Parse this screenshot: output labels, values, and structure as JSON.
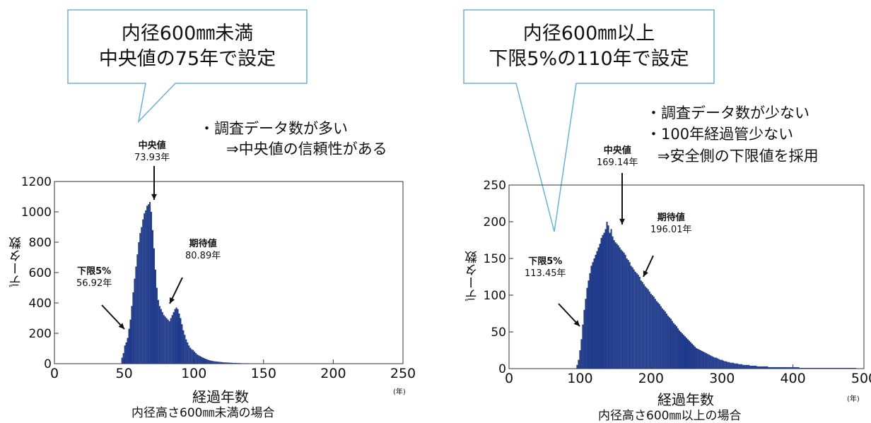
{
  "callouts": [
    {
      "line1": "内径600㎜未満",
      "line2": "中央値の75年で設定"
    },
    {
      "line1": "内径600㎜以上",
      "line2": "下限5%の110年で設定"
    }
  ],
  "notes_left": [
    "・調査データ数が多い",
    "⇒中央値の信頼性がある"
  ],
  "notes_right": [
    "・調査データ数が少ない",
    "・100年経過管少ない",
    "⇒安全側の下限値を採用"
  ],
  "chart_data": [
    {
      "type": "bar",
      "title": "",
      "xlabel": "経過年数",
      "ylabel": "データ数",
      "x_unit": "(年)",
      "caption": "内径高さ600㎜未満の場合",
      "xlim": [
        0,
        250
      ],
      "ylim": [
        0,
        1200
      ],
      "xticks": [
        "0",
        "50",
        "100",
        "150",
        "200",
        "250"
      ],
      "yticks": [
        "0",
        "200",
        "400",
        "600",
        "800",
        "1000",
        "1200"
      ],
      "color": "#1f3a8a",
      "bins_start": 48,
      "bin_width": 1,
      "values": [
        40,
        70,
        120,
        140,
        170,
        230,
        290,
        380,
        470,
        560,
        640,
        720,
        800,
        860,
        900,
        950,
        990,
        1010,
        1040,
        1050,
        1065,
        1000,
        880,
        760,
        620,
        500,
        420,
        380,
        360,
        340,
        320,
        310,
        300,
        290,
        280,
        300,
        320,
        340,
        360,
        370,
        360,
        330,
        300,
        260,
        220,
        190,
        160,
        140,
        120,
        105,
        95,
        90,
        80,
        70,
        60,
        55,
        50,
        45,
        40,
        36,
        32,
        28,
        25,
        22,
        20,
        18,
        16,
        15,
        14,
        13,
        12,
        11,
        10,
        9,
        8,
        8,
        7,
        7,
        6,
        6,
        5,
        5,
        5,
        4,
        4,
        4,
        3,
        3,
        3,
        3,
        3,
        2,
        2,
        2,
        2,
        2,
        2,
        2,
        2,
        2,
        2,
        2,
        2,
        2,
        2,
        2,
        1,
        1,
        1,
        1,
        1,
        1,
        1,
        1,
        1,
        1,
        1,
        1,
        1,
        1,
        1,
        1,
        1,
        1,
        1,
        1,
        1,
        1,
        1,
        1,
        1,
        1,
        1,
        1,
        1,
        1
      ],
      "markers": [
        {
          "name": "下限5%",
          "value": "56.92年",
          "x": 56.92
        },
        {
          "name": "中央値",
          "value": "73.93年",
          "x": 73.93
        },
        {
          "name": "期待値",
          "value": "80.89年",
          "x": 80.89
        }
      ]
    },
    {
      "type": "bar",
      "title": "",
      "xlabel": "経過年数",
      "ylabel": "データ数",
      "x_unit": "(年)",
      "caption": "内径高さ600㎜以上の場合",
      "xlim": [
        0,
        500
      ],
      "ylim": [
        0,
        250
      ],
      "xticks": [
        "0",
        "100",
        "200",
        "300",
        "400",
        "500"
      ],
      "yticks": [
        "0",
        "50",
        "100",
        "150",
        "200",
        "250"
      ],
      "color": "#1f3a8a",
      "bins_start": 95,
      "bin_width": 2,
      "values": [
        5,
        12,
        25,
        40,
        60,
        80,
        95,
        110,
        120,
        130,
        140,
        145,
        150,
        155,
        160,
        165,
        170,
        178,
        182,
        185,
        190,
        200,
        195,
        185,
        190,
        180,
        175,
        172,
        170,
        168,
        165,
        162,
        160,
        158,
        155,
        150,
        148,
        145,
        140,
        138,
        135,
        132,
        130,
        128,
        125,
        120,
        118,
        115,
        112,
        110,
        108,
        105,
        102,
        100,
        98,
        95,
        92,
        90,
        88,
        85,
        82,
        80,
        78,
        75,
        72,
        70,
        68,
        65,
        62,
        60,
        58,
        55,
        52,
        50,
        48,
        46,
        44,
        42,
        40,
        38,
        36,
        34,
        32,
        30,
        28,
        27,
        26,
        25,
        24,
        23,
        22,
        21,
        20,
        19,
        18,
        17,
        16,
        15,
        15,
        14,
        13,
        12,
        12,
        11,
        10,
        10,
        9,
        9,
        8,
        8,
        8,
        7,
        7,
        7,
        6,
        6,
        6,
        5,
        5,
        5,
        5,
        5,
        4,
        4,
        4,
        4,
        4,
        3,
        3,
        3,
        3,
        3,
        3,
        3,
        3,
        2,
        2,
        2,
        2,
        2,
        2,
        2,
        2,
        2,
        2,
        2,
        2,
        2,
        2,
        2,
        2,
        2,
        2,
        2,
        2,
        2,
        2,
        1,
        1,
        1,
        1,
        1,
        1,
        1,
        1,
        1,
        1,
        1,
        1,
        1,
        1,
        1,
        1,
        1,
        1,
        1,
        1,
        1,
        1,
        1,
        1,
        1,
        1,
        1,
        1,
        1,
        1,
        1,
        1,
        1,
        1,
        1,
        1,
        1,
        1,
        1,
        1
      ],
      "markers": [
        {
          "name": "下限5%",
          "value": "113.45年",
          "x": 113.45
        },
        {
          "name": "中央値",
          "value": "169.14年",
          "x": 169.14
        },
        {
          "name": "期待値",
          "value": "196.01年",
          "x": 196.01
        }
      ]
    }
  ]
}
